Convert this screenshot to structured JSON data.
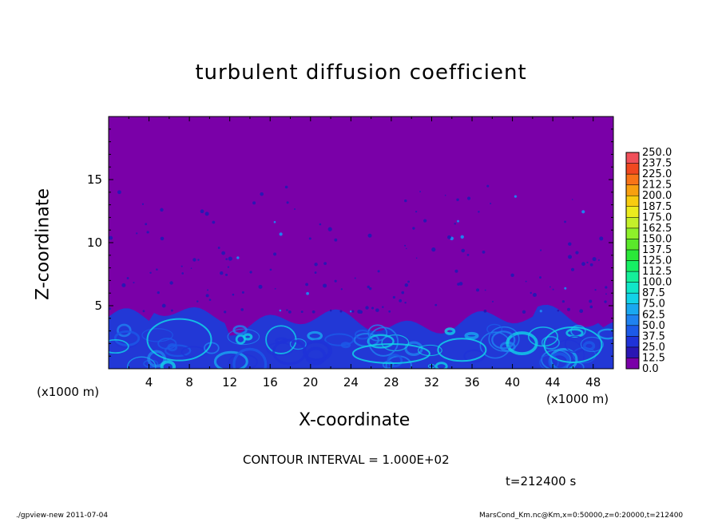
{
  "chart_data": {
    "type": "heatmap",
    "title": "turbulent diffusion coefficient",
    "xlabel": "X-coordinate",
    "ylabel": "Z-coordinate",
    "x_unit": "(x1000 m)",
    "xlim": [
      0,
      50
    ],
    "ylim": [
      0,
      20
    ],
    "x_ticks": [
      4,
      8,
      12,
      16,
      20,
      24,
      28,
      32,
      36,
      40,
      44,
      48
    ],
    "y_ticks": [
      5,
      10,
      15
    ],
    "colorbar": {
      "levels": [
        "0.0",
        "12.5",
        "25.0",
        "37.5",
        "50.0",
        "62.5",
        "75.0",
        "87.5",
        "100.0",
        "112.5",
        "125.0",
        "137.5",
        "150.0",
        "162.5",
        "175.0",
        "187.5",
        "200.0",
        "212.5",
        "225.0",
        "237.5",
        "250.0"
      ],
      "colors": [
        "#7a00a8",
        "#2a16b4",
        "#1f32d8",
        "#1c5ae8",
        "#1f82f0",
        "#19a8f0",
        "#12d2e8",
        "#10e6c8",
        "#14f09a",
        "#16f064",
        "#2ae838",
        "#5ae82a",
        "#8ef02a",
        "#c4f02a",
        "#ecec1e",
        "#f8cc10",
        "#f8a010",
        "#f87418",
        "#f04820",
        "#f0505a",
        "#f08080"
      ]
    },
    "background_color": "#7a00a8",
    "boundary_layer_top": 4.5
  },
  "annotations": {
    "contour_interval": "CONTOUR INTERVAL = 1.000E+02",
    "time": "t=212400 s",
    "footer_left": "./gpview-new   2011-07-04",
    "footer_right": "MarsCond_Km.nc@Km,x=0:50000,z=0:20000,t=212400"
  }
}
